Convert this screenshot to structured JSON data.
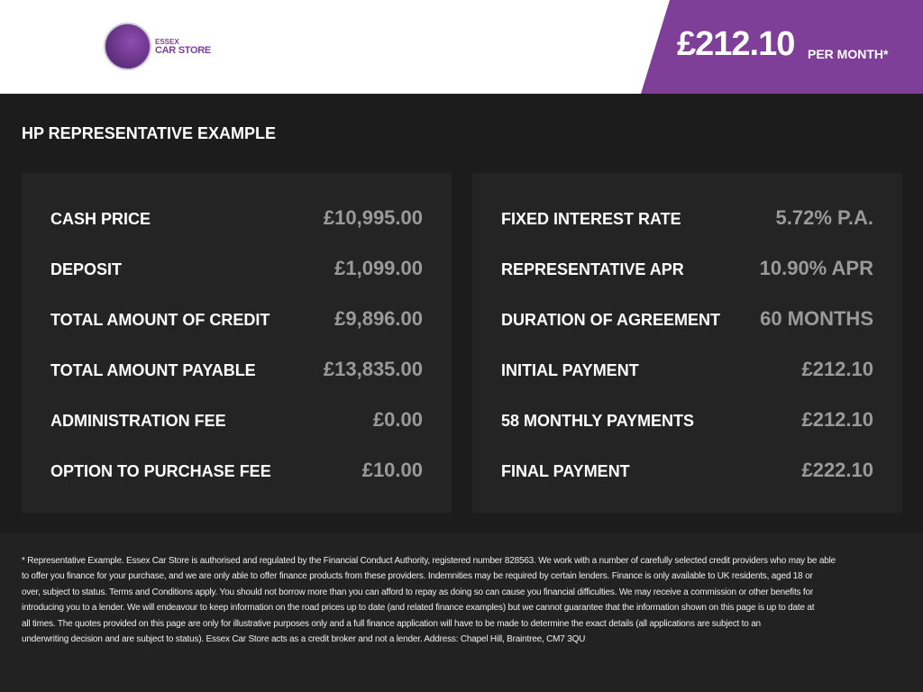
{
  "header": {
    "logo_line1": "ESSEX",
    "logo_line2": "CAR STORE",
    "price": "£212.10",
    "price_suffix": "PER MONTH*",
    "accent": "#7f3f98"
  },
  "section_title": "HP REPRESENTATIVE EXAMPLE",
  "left_panel": [
    {
      "label": "CASH PRICE",
      "value": "£10,995.00"
    },
    {
      "label": "DEPOSIT",
      "value": "£1,099.00"
    },
    {
      "label": "TOTAL AMOUNT OF CREDIT",
      "value": "£9,896.00"
    },
    {
      "label": "TOTAL AMOUNT PAYABLE",
      "value": "£13,835.00"
    },
    {
      "label": "ADMINISTRATION FEE",
      "value": "£0.00"
    },
    {
      "label": "OPTION TO PURCHASE FEE",
      "value": "£10.00"
    }
  ],
  "right_panel": [
    {
      "label": "FIXED INTEREST RATE",
      "value": "5.72% P.A."
    },
    {
      "label": "REPRESENTATIVE APR",
      "value": "10.90% APR"
    },
    {
      "label": "DURATION OF AGREEMENT",
      "value": "60 MONTHS"
    },
    {
      "label": "INITIAL PAYMENT",
      "value": "£212.10"
    },
    {
      "label": "58 MONTHLY PAYMENTS",
      "value": "£212.10"
    },
    {
      "label": "FINAL PAYMENT",
      "value": "£222.10"
    }
  ],
  "disclaimer": [
    "* Representative Example. Essex Car Store is authorised and regulated by the Financial Conduct Authority, registered number 828563. We work with a number of carefully selected credit providers who may be able",
    "to offer you finance for your purchase, and we are only able to offer finance products from these providers. Indemnities may be required by certain lenders. Finance is only available to UK residents, aged 18 or",
    "over, subject to status. Terms and Conditions apply. You should not borrow more than you can afford to repay as doing so can cause you financial difficulties. We may receive a commission or other benefits for",
    "introducing you to a lender. We will endeavour to keep information on the road prices up to date (and related finance examples) but we cannot guarantee that the information shown on this page is up to date at",
    "all times. The quotes provided on this page are only for illustrative purposes only and a full finance application will have to be made to determine the exact details (all applications are subject to an",
    "underwriting decision and are subject to status). Essex Car Store acts as a credit broker and not a lender. Address: Chapel Hill, Braintree, CM7 3QU"
  ]
}
